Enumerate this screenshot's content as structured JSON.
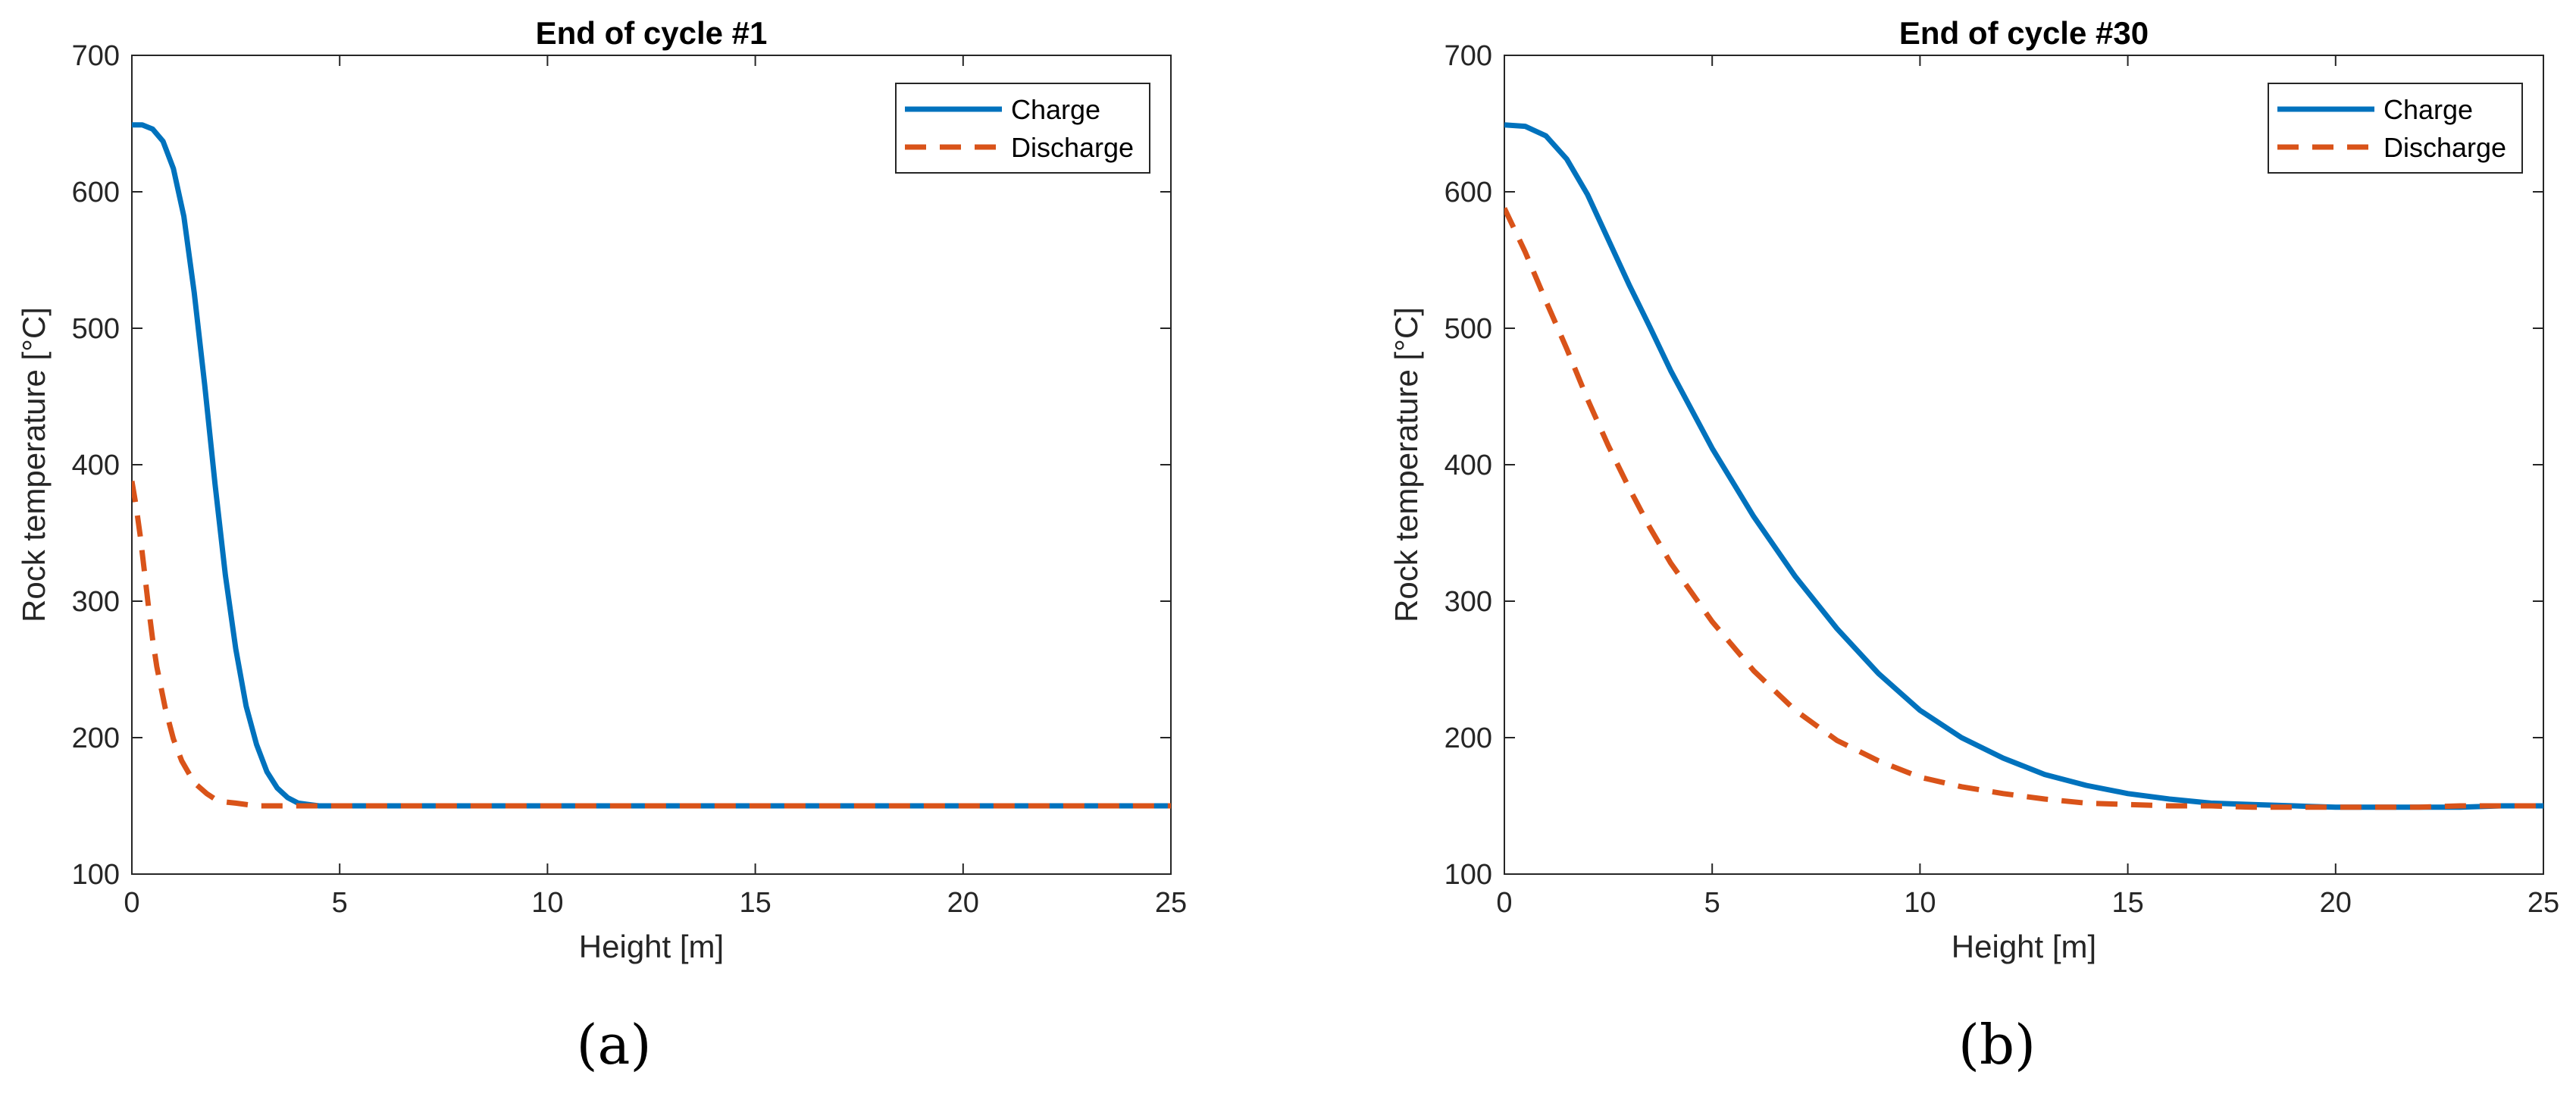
{
  "chart_data": [
    {
      "type": "line",
      "title": "End of cycle #1",
      "panel_label": "(a)",
      "xlabel": "Height [m]",
      "ylabel": "Rock temperature [°C]",
      "xlim": [
        0,
        25
      ],
      "ylim": [
        100,
        700
      ],
      "xticks": [
        0,
        5,
        10,
        15,
        20,
        25
      ],
      "yticks": [
        100,
        200,
        300,
        400,
        500,
        600,
        700
      ],
      "xtick_labels": [
        "0",
        "5",
        "10",
        "15",
        "20",
        "25"
      ],
      "ytick_labels": [
        "100",
        "200",
        "300",
        "400",
        "500",
        "600",
        "700"
      ],
      "grid": false,
      "legend_position": "top-right",
      "series": [
        {
          "name": "Charge",
          "style": "solid",
          "color": "#0072BD",
          "x": [
            0,
            0.25,
            0.5,
            0.75,
            1.0,
            1.25,
            1.5,
            1.75,
            2.0,
            2.25,
            2.5,
            2.75,
            3.0,
            3.25,
            3.5,
            3.75,
            4.0,
            4.25,
            4.5,
            5,
            6,
            8,
            10,
            12,
            14,
            16,
            18,
            20,
            22,
            25
          ],
          "y": [
            649,
            649,
            646,
            637,
            617,
            582,
            526,
            459,
            386,
            319,
            265,
            223,
            195,
            175,
            163,
            156,
            152,
            151,
            150,
            150,
            150,
            150,
            150,
            150,
            150,
            150,
            150,
            150,
            150,
            150
          ]
        },
        {
          "name": "Discharge",
          "style": "dashed",
          "color": "#D95319",
          "x": [
            0,
            0.1,
            0.2,
            0.3,
            0.4,
            0.5,
            0.6,
            0.8,
            1.0,
            1.2,
            1.5,
            1.8,
            2.0,
            2.2,
            2.5,
            3.0,
            3.5,
            4.0,
            5,
            6,
            8,
            10,
            12,
            14,
            16,
            18,
            20,
            22,
            25
          ],
          "y": [
            388,
            370,
            348,
            322,
            296,
            272,
            252,
            222,
            199,
            183,
            167,
            159,
            155,
            153,
            152,
            150,
            150,
            150,
            150,
            150,
            150,
            150,
            150,
            150,
            150,
            150,
            150,
            150,
            150
          ]
        }
      ]
    },
    {
      "type": "line",
      "title": "End of cycle #30",
      "panel_label": "(b)",
      "xlabel": "Height [m]",
      "ylabel": "Rock temperature [°C]",
      "xlim": [
        0,
        25
      ],
      "ylim": [
        100,
        700
      ],
      "xticks": [
        0,
        5,
        10,
        15,
        20,
        25
      ],
      "yticks": [
        100,
        200,
        300,
        400,
        500,
        600,
        700
      ],
      "xtick_labels": [
        "0",
        "5",
        "10",
        "15",
        "20",
        "25"
      ],
      "ytick_labels": [
        "100",
        "200",
        "300",
        "400",
        "500",
        "600",
        "700"
      ],
      "grid": false,
      "legend_position": "top-right",
      "series": [
        {
          "name": "Charge",
          "style": "solid",
          "color": "#0072BD",
          "x": [
            0,
            0.5,
            1.0,
            1.5,
            2.0,
            2.5,
            3.0,
            3.5,
            4.0,
            5,
            6,
            7,
            8,
            9,
            10,
            11,
            12,
            13,
            14,
            15,
            16,
            17,
            18,
            19,
            20,
            21,
            22,
            23,
            24,
            25
          ],
          "y": [
            649,
            648,
            641,
            624,
            598,
            565,
            532,
            501,
            469,
            412,
            362,
            318,
            280,
            247,
            220,
            200,
            185,
            173,
            165,
            159,
            155,
            152,
            151,
            150,
            149,
            149,
            149,
            149,
            150,
            150
          ]
        },
        {
          "name": "Discharge",
          "style": "dashed",
          "color": "#D95319",
          "x": [
            0,
            0.5,
            1.0,
            1.5,
            2.0,
            2.5,
            3.0,
            3.5,
            4.0,
            5,
            6,
            7,
            8,
            9,
            10,
            11,
            12,
            13,
            14,
            15,
            16,
            17,
            18,
            19,
            20,
            21,
            22,
            23,
            24,
            25
          ],
          "y": [
            588,
            556,
            520,
            485,
            448,
            414,
            383,
            354,
            328,
            285,
            249,
            220,
            198,
            183,
            171,
            164,
            159,
            155,
            152,
            151,
            150,
            150,
            149,
            149,
            149,
            149,
            149,
            150,
            150,
            150
          ]
        }
      ]
    }
  ]
}
